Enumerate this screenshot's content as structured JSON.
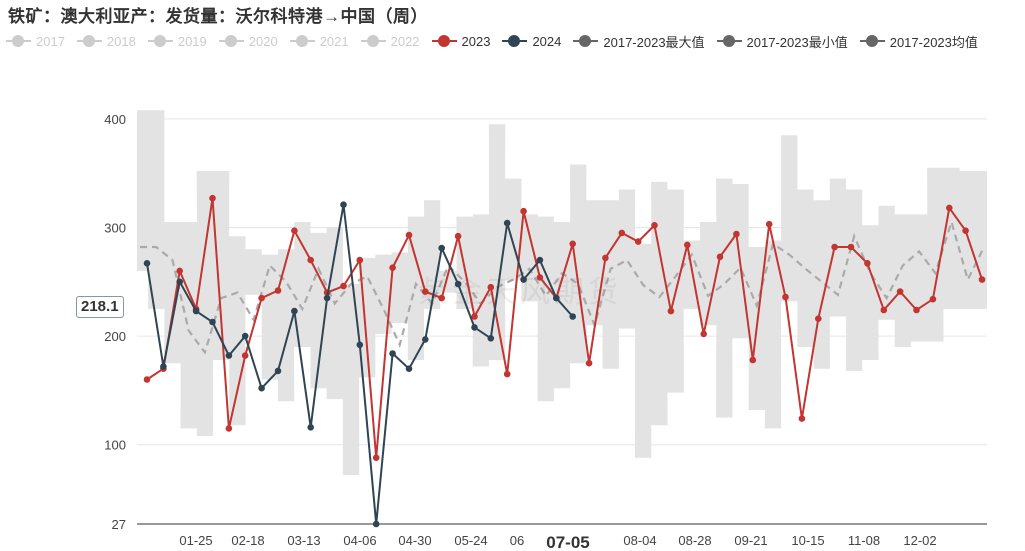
{
  "title": "铁矿：澳大利亚产：发货量：沃尔科特港→中国（周）",
  "legend": [
    {
      "name": "2017",
      "color": "#cccccc",
      "active": false
    },
    {
      "name": "2018",
      "color": "#cccccc",
      "active": false
    },
    {
      "name": "2019",
      "color": "#cccccc",
      "active": false
    },
    {
      "name": "2020",
      "color": "#cccccc",
      "active": false
    },
    {
      "name": "2021",
      "color": "#cccccc",
      "active": false
    },
    {
      "name": "2022",
      "color": "#cccccc",
      "active": false
    },
    {
      "name": "2023",
      "color": "#c23531",
      "active": true
    },
    {
      "name": "2024",
      "color": "#2f4554",
      "active": true
    },
    {
      "name": "2017-2023最大值",
      "color": "#666666",
      "active": true
    },
    {
      "name": "2017-2023最小值",
      "color": "#666666",
      "active": true
    },
    {
      "name": "2017-2023均值",
      "color": "#666666",
      "active": true
    }
  ],
  "axis_pointer_label": "218.1",
  "watermark": "紫金天风期货",
  "chart_data": {
    "type": "line",
    "x_tick_labels": [
      "01-25",
      "02-18",
      "03-13",
      "04-06",
      "04-30",
      "05-24",
      "06",
      "07-05",
      "08-04",
      "08-28",
      "09-21",
      "10-15",
      "11-08",
      "12-02"
    ],
    "y_ticks": [
      27,
      100,
      200,
      300,
      400
    ],
    "ylim": [
      27,
      410
    ],
    "week_count": 52,
    "series": [
      {
        "name": "2023",
        "color": "#c23531",
        "values": [
          160,
          170,
          260,
          225,
          327,
          115,
          182,
          235,
          242,
          297,
          270,
          240,
          246,
          270,
          88,
          263,
          293,
          241,
          235,
          292,
          218,
          245,
          165,
          315,
          254,
          235,
          285,
          175,
          272,
          295,
          287,
          302,
          223,
          284,
          202,
          273,
          294,
          178,
          303,
          236,
          124,
          216,
          282,
          282,
          267,
          224,
          241,
          224,
          234,
          318,
          297,
          252
        ]
      },
      {
        "name": "2024",
        "color": "#2f4554",
        "values": [
          267,
          172,
          250,
          223,
          213,
          182,
          200,
          152,
          168,
          223,
          116,
          235,
          321,
          192,
          27,
          184,
          170,
          197,
          281,
          248,
          208,
          198,
          304,
          252,
          270,
          235,
          218
        ]
      },
      {
        "name": "2017-2023均值",
        "color": "#aaaaaa",
        "values": [
          282,
          282,
          270,
          205,
          185,
          235,
          240,
          215,
          265,
          250,
          225,
          262,
          230,
          248,
          255,
          225,
          192,
          248,
          230,
          265,
          250,
          230,
          245,
          252,
          262,
          237,
          258,
          248,
          210,
          262,
          270,
          247,
          236,
          255,
          275,
          237,
          248,
          263,
          228,
          285,
          275,
          262,
          250,
          238,
          292,
          258,
          235,
          265,
          278,
          258,
          305,
          252,
          282
        ]
      },
      {
        "name": "2017-2023最大值",
        "values": [
          408,
          408,
          305,
          305,
          352,
          352,
          292,
          280,
          275,
          280,
          305,
          295,
          300,
          248,
          272,
          275,
          277,
          310,
          325,
          260,
          310,
          312,
          395,
          345,
          312,
          310,
          305,
          358,
          325,
          325,
          335,
          285,
          342,
          335,
          288,
          305,
          345,
          340,
          282,
          288,
          385,
          335,
          325,
          345,
          335,
          302,
          320,
          312,
          312,
          355,
          355,
          352,
          352
        ]
      },
      {
        "name": "2017-2023最小值",
        "values": [
          260,
          225,
          175,
          115,
          108,
          178,
          118,
          238,
          160,
          140,
          190,
          152,
          142,
          72,
          162,
          202,
          212,
          178,
          225,
          240,
          225,
          172,
          178,
          252,
          232,
          140,
          152,
          175,
          210,
          170,
          207,
          88,
          118,
          148,
          225,
          210,
          125,
          198,
          132,
          115,
          232,
          190,
          170,
          218,
          168,
          178,
          215,
          190,
          195,
          195,
          225,
          225,
          225
        ]
      }
    ]
  }
}
